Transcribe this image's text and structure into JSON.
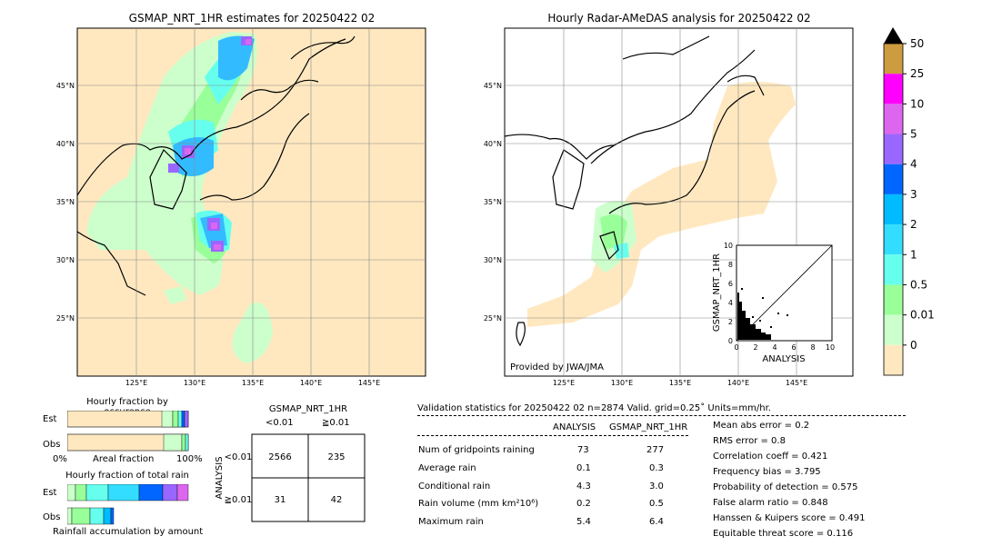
{
  "left_map": {
    "title": "GSMAP_NRT_1HR estimates for 20250422 02",
    "lat_labels": [
      "45°N",
      "40°N",
      "35°N",
      "30°N",
      "25°N"
    ],
    "lon_labels": [
      "125°E",
      "130°E",
      "135°E",
      "140°E",
      "145°E"
    ]
  },
  "right_map": {
    "title": "Hourly Radar-AMeDAS analysis for 20250422 02",
    "lat_labels": [
      "45°N",
      "40°N",
      "35°N",
      "30°N",
      "25°N"
    ],
    "lon_labels": [
      "125°E",
      "130°E",
      "135°E",
      "140°E",
      "145°E"
    ],
    "credit": "Provided by JWA/JMA"
  },
  "scatter": {
    "ylabel": "GSMAP_NRT_1HR",
    "xlabel": "ANALYSIS",
    "ticks": [
      "0",
      "2",
      "4",
      "6",
      "8",
      "10"
    ]
  },
  "colorbar": {
    "labels": [
      "50",
      "25",
      "10",
      "5",
      "4",
      "3",
      "2",
      "1",
      "0.5",
      "0.01",
      "0"
    ],
    "colors": [
      "#cd9b40",
      "#ff00ff",
      "#dd66ee",
      "#9966ff",
      "#0066ff",
      "#00bbff",
      "#33ddff",
      "#66ffee",
      "#99ff99",
      "#ccffcc",
      "#ffe8c0"
    ]
  },
  "occurrence": {
    "title": "Hourly fraction by occurence",
    "row_labels": [
      "Est",
      "Obs"
    ],
    "axis_left": "0%",
    "axis_mid": "Areal fraction",
    "axis_right": "100%"
  },
  "total_rain": {
    "title": "Hourly fraction of total rain",
    "row_labels": [
      "Est",
      "Obs"
    ],
    "footer": "Rainfall accumulation by amount"
  },
  "contingency": {
    "title": "GSMAP_NRT_1HR",
    "col_labels": [
      "<0.01",
      "≧0.01"
    ],
    "row_axis": "ANALYSIS",
    "row_labels": [
      "<0.01",
      "≧0.01"
    ],
    "cells": [
      "2566",
      "235",
      "31",
      "42"
    ]
  },
  "validation": {
    "header": "Validation statistics for 20250422 02  n=2874 Valid. grid=0.25˚ Units=mm/hr.",
    "col_analysis": "ANALYSIS",
    "col_gsmap": "GSMAP_NRT_1HR",
    "rows": [
      {
        "label": "Num of gridpoints raining",
        "analysis": "73",
        "gsmap": "277"
      },
      {
        "label": "Average rain",
        "analysis": "0.1",
        "gsmap": "0.3"
      },
      {
        "label": "Conditional rain",
        "analysis": "4.3",
        "gsmap": "3.0"
      },
      {
        "label": "Rain volume (mm km²10⁶)",
        "analysis": "0.2",
        "gsmap": "0.5"
      },
      {
        "label": "Maximum rain",
        "analysis": "5.4",
        "gsmap": "6.4"
      }
    ],
    "scores": [
      "Mean abs error =    0.2",
      "RMS error =    0.8",
      "Correlation coeff =  0.421",
      "Frequency bias =  3.795",
      "Probability of detection =  0.575",
      "False alarm ratio =  0.848",
      "Hanssen & Kuipers score =  0.491",
      "Equitable threat score =  0.116"
    ]
  }
}
